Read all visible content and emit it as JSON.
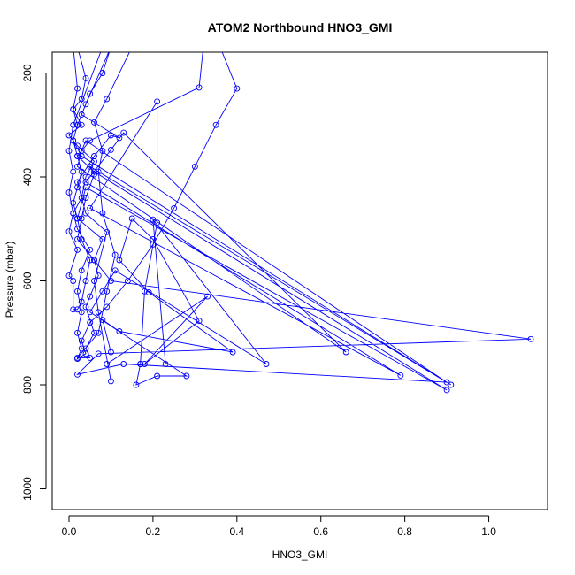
{
  "chart_data": {
    "type": "line",
    "title": "ATOM2 Northbound HNO3_GMI",
    "xlabel": "HNO3_GMI",
    "ylabel": "Pressure (mbar)",
    "xlim": [
      -0.04,
      1.14
    ],
    "ylim": [
      1040,
      160
    ],
    "y_reversed": true,
    "grid": false,
    "x_ticks": [
      0.0,
      0.2,
      0.4,
      0.6,
      0.8,
      1.0
    ],
    "x_tick_labels": [
      "0.0",
      "0.2",
      "0.4",
      "0.6",
      "0.8",
      "1.0"
    ],
    "y_ticks": [
      200,
      400,
      600,
      800,
      1000
    ],
    "y_tick_labels": [
      "200",
      "400",
      "600",
      "800",
      "1000"
    ],
    "series": [
      {
        "color": "#0000ff",
        "marker": "open-circle",
        "points": [
          [
            0.01,
            150
          ],
          [
            0.02,
            230
          ],
          [
            0.01,
            270
          ],
          [
            0.03,
            300
          ],
          [
            0.0,
            320
          ],
          [
            0.02,
            340
          ],
          [
            0.06,
            370
          ],
          [
            0.04,
            400
          ],
          [
            0.03,
            440
          ],
          [
            0.01,
            470
          ],
          [
            0.02,
            500
          ],
          [
            0.05,
            540
          ],
          [
            0.03,
            580
          ],
          [
            0.02,
            620
          ],
          [
            0.03,
            660
          ],
          [
            0.02,
            700
          ],
          [
            0.03,
            730
          ],
          [
            0.02,
            750
          ],
          [
            0.04,
            740
          ],
          [
            0.03,
            715
          ],
          [
            0.05,
            680
          ],
          [
            0.09,
            650
          ],
          [
            0.14,
            600
          ],
          [
            0.2,
            530
          ],
          [
            0.25,
            460
          ],
          [
            0.3,
            380
          ],
          [
            0.35,
            300
          ],
          [
            0.4,
            230
          ],
          [
            0.36,
            150
          ],
          [
            0.32,
            150
          ],
          [
            0.31,
            228
          ],
          [
            0.05,
            330
          ],
          [
            0.02,
            360
          ],
          [
            0.06,
            390
          ],
          [
            0.9,
            810
          ],
          [
            0.04,
            420
          ],
          [
            0.02,
            480
          ],
          [
            0.08,
            520
          ],
          [
            0.06,
            560
          ],
          [
            0.1,
            600
          ],
          [
            1.1,
            712
          ],
          [
            0.07,
            740
          ],
          [
            0.02,
            780
          ],
          [
            0.13,
            760
          ],
          [
            0.9,
            795
          ],
          [
            0.04,
            330
          ],
          [
            0.03,
            350
          ],
          [
            0.02,
            380
          ],
          [
            0.66,
            737
          ],
          [
            0.13,
            315
          ],
          [
            0.1,
            348
          ],
          [
            0.04,
            410
          ],
          [
            0.79,
            782
          ],
          [
            0.05,
            460
          ],
          [
            0.21,
            255
          ],
          [
            0.21,
            488
          ],
          [
            0.18,
            620
          ],
          [
            0.17,
            760
          ],
          [
            0.23,
            760
          ],
          [
            0.2,
            482
          ],
          [
            0.47,
            760
          ],
          [
            0.11,
            580
          ],
          [
            0.08,
            620
          ],
          [
            0.05,
            660
          ],
          [
            0.28,
            783
          ],
          [
            0.21,
            783
          ],
          [
            0.16,
            800
          ],
          [
            0.17,
            760
          ],
          [
            0.09,
            760
          ],
          [
            0.33,
            630
          ],
          [
            0.18,
            760
          ],
          [
            0.31,
            677
          ],
          [
            0.2,
            520
          ],
          [
            0.15,
            480
          ],
          [
            0.12,
            560
          ],
          [
            0.19,
            622
          ],
          [
            0.39,
            737
          ],
          [
            0.12,
            697
          ],
          [
            0.08,
            675
          ],
          [
            0.1,
            737
          ],
          [
            0.1,
            793
          ],
          [
            0.07,
            660
          ],
          [
            0.06,
            600
          ],
          [
            0.09,
            506
          ],
          [
            0.04,
            470
          ],
          [
            0.02,
            410
          ],
          [
            0.06,
            360
          ],
          [
            0.1,
            320
          ],
          [
            0.12,
            325
          ],
          [
            0.03,
            280
          ],
          [
            0.05,
            240
          ],
          [
            0.08,
            200
          ],
          [
            0.1,
            150
          ],
          [
            0.1,
            150
          ],
          [
            0.04,
            260
          ],
          [
            0.02,
            300
          ],
          [
            0.01,
            330
          ],
          [
            0.03,
            360
          ],
          [
            0.91,
            800
          ],
          [
            0.05,
            380
          ],
          [
            0.06,
            395
          ],
          [
            0.04,
            440
          ],
          [
            0.03,
            480
          ],
          [
            0.02,
            520
          ],
          [
            0.06,
            560
          ],
          [
            0.07,
            590
          ],
          [
            0.05,
            630
          ],
          [
            0.04,
            650
          ],
          [
            0.06,
            700
          ],
          [
            0.04,
            730
          ],
          [
            0.05,
            748
          ],
          [
            0.02,
            748
          ],
          [
            0.07,
            700
          ],
          [
            0.09,
            620
          ],
          [
            0.11,
            550
          ],
          [
            0.08,
            470
          ],
          [
            0.07,
            390
          ],
          [
            0.08,
            350
          ],
          [
            0.06,
            295
          ],
          [
            0.09,
            250
          ],
          [
            0.15,
            150
          ],
          [
            0.08,
            150
          ],
          [
            0.01,
            300
          ],
          [
            0.0,
            350
          ],
          [
            0.01,
            390
          ],
          [
            0.0,
            430
          ],
          [
            0.01,
            470
          ],
          [
            0.0,
            505
          ],
          [
            0.02,
            540
          ],
          [
            0.0,
            590
          ],
          [
            0.01,
            600
          ],
          [
            0.01,
            655
          ],
          [
            0.02,
            655
          ],
          [
            0.03,
            640
          ],
          [
            0.04,
            600
          ],
          [
            0.05,
            560
          ],
          [
            0.03,
            520
          ],
          [
            0.02,
            480
          ],
          [
            0.01,
            450
          ],
          [
            0.02,
            420
          ],
          [
            0.03,
            390
          ],
          [
            0.02,
            360
          ],
          [
            0.01,
            330
          ],
          [
            0.02,
            300
          ],
          [
            0.01,
            270
          ],
          [
            0.03,
            250
          ],
          [
            0.04,
            210
          ],
          [
            0.02,
            150
          ]
        ]
      }
    ]
  }
}
